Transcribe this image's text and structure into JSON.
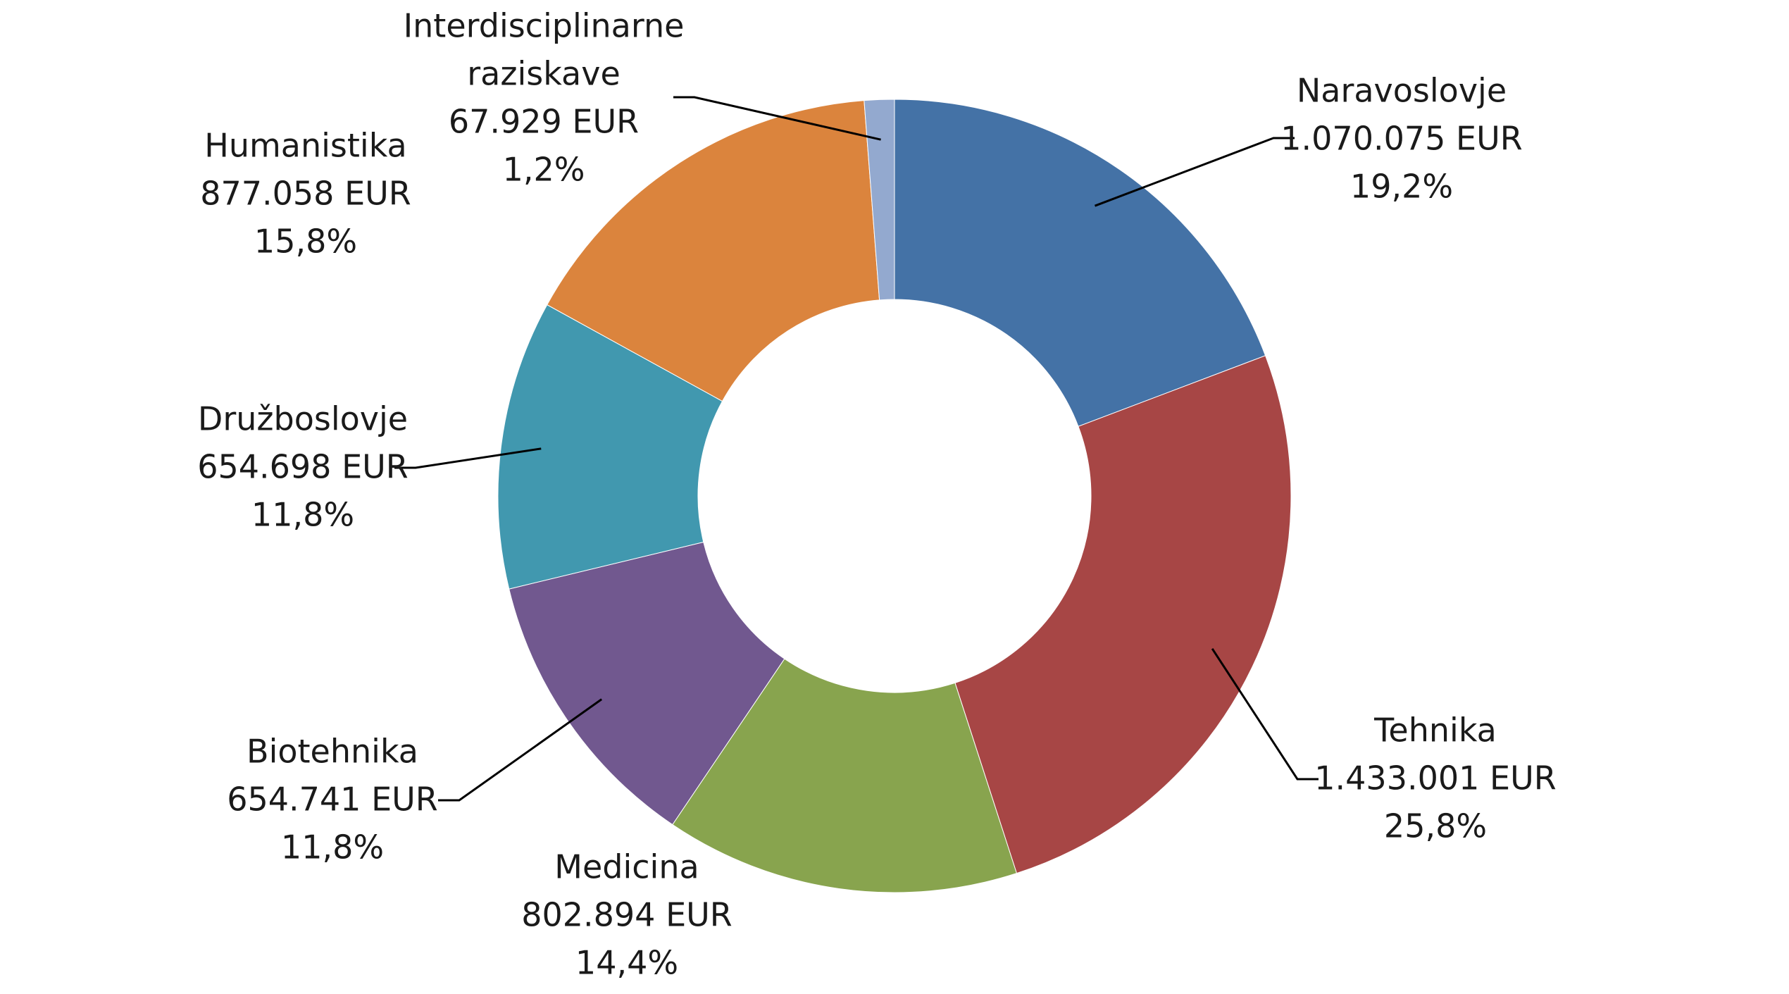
{
  "chart_data": {
    "type": "pie",
    "variant": "donut",
    "start_angle_deg": 0,
    "direction": "clockwise",
    "slices": [
      {
        "name": "Naravoslovje",
        "lines": [
          "Naravoslovje"
        ],
        "value": 1070075,
        "value_label": "1.070.075 EUR",
        "percent": 19.2,
        "percent_label": "19,2%",
        "color": "#4472A6"
      },
      {
        "name": "Tehnika",
        "lines": [
          "Tehnika"
        ],
        "value": 1433001,
        "value_label": "1.433.001 EUR",
        "percent": 25.8,
        "percent_label": "25,8%",
        "color": "#A74645"
      },
      {
        "name": "Medicina",
        "lines": [
          "Medicina"
        ],
        "value": 802894,
        "value_label": "802.894 EUR",
        "percent": 14.4,
        "percent_label": "14,4%",
        "color": "#88A44E"
      },
      {
        "name": "Biotehnika",
        "lines": [
          "Biotehnika"
        ],
        "value": 654741,
        "value_label": "654.741 EUR",
        "percent": 11.8,
        "percent_label": "11,8%",
        "color": "#71588F"
      },
      {
        "name": "Družboslovje",
        "lines": [
          "Družboslovje"
        ],
        "value": 654698,
        "value_label": "654.698 EUR",
        "percent": 11.8,
        "percent_label": "11,8%",
        "color": "#4198AF"
      },
      {
        "name": "Humanistika",
        "lines": [
          "Humanistika"
        ],
        "value": 877058,
        "value_label": "877.058 EUR",
        "percent": 15.8,
        "percent_label": "15,8%",
        "color": "#DB843D"
      },
      {
        "name": "Interdisciplinarne raziskave",
        "lines": [
          "Interdisciplinarne",
          "raziskave"
        ],
        "value": 67929,
        "value_label": "67.929 EUR",
        "percent": 1.2,
        "percent_label": "1,2%",
        "color": "#93A9CF"
      }
    ]
  }
}
